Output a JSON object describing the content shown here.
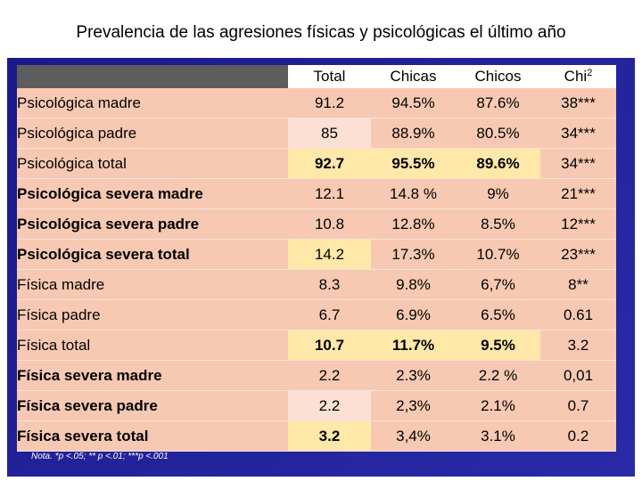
{
  "title": "Prevalencia de las agresiones físicas y psicológicas el último año",
  "columns": [
    "Total",
    "Chicas",
    "Chicos",
    "Chi",
    "2"
  ],
  "rows": [
    {
      "label": "Psicológica madre",
      "total": "91.2",
      "chicas": "94.5%",
      "chicos": "87.6%",
      "chi": "38***"
    },
    {
      "label": "Psicológica padre",
      "total": "85",
      "chicas": "88.9%",
      "chicos": "80.5%",
      "chi": "34***"
    },
    {
      "label": "Psicológica total",
      "total": "92.7",
      "chicas": "95.5%",
      "chicos": "89.6%",
      "chi": "34***"
    },
    {
      "label": "Psicológica severa madre",
      "total": "12.1",
      "chicas": "14.8 %",
      "chicos": "9%",
      "chi": "21***"
    },
    {
      "label": "Psicológica severa padre",
      "total": "10.8",
      "chicas": "12.8%",
      "chicos": "8.5%",
      "chi": "12***"
    },
    {
      "label": "Psicológica severa total",
      "total": "14.2",
      "chicas": "17.3%",
      "chicos": "10.7%",
      "chi": "23***"
    },
    {
      "label": "Física madre",
      "total": "8.3",
      "chicas": "9.8%",
      "chicos": "6,7%",
      "chi": "8**"
    },
    {
      "label": "Física padre",
      "total": "6.7",
      "chicas": "6.9%",
      "chicos": "6.5%",
      "chi": "0.61"
    },
    {
      "label": "Física total",
      "total": "10.7",
      "chicas": "11.7%",
      "chicos": "9.5%",
      "chi": "3.2"
    },
    {
      "label": "Física severa madre",
      "total": "2.2",
      "chicas": "2.3%",
      "chicos": "2.2 %",
      "chi": "0,01"
    },
    {
      "label": "Física severa padre",
      "total": "2.2",
      "chicas": "2,3%",
      "chicos": "2.1%",
      "chi": "0.7"
    },
    {
      "label": "Física severa total",
      "total": "3.2",
      "chicas": "3,4%",
      "chicos": "3.1%",
      "chi": "0.2"
    }
  ],
  "note": "Nota. *p <.05; ** p <.01; ***p <.001",
  "colors": {
    "background": "#23239c",
    "row": "#f7c9b2",
    "highlight": "#ffe8a8",
    "header_label": "#5d5d5d"
  }
}
